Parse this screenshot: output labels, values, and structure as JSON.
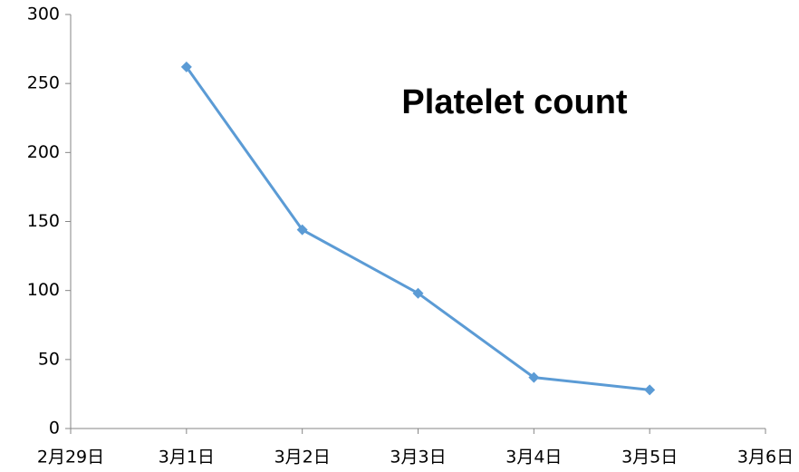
{
  "chart_data": {
    "type": "line",
    "title": "Platelet count",
    "categories": [
      "2月29日",
      "3月1日",
      "3月2日",
      "3月3日",
      "3月4日",
      "3月5日",
      "3月6日"
    ],
    "values": [
      null,
      262,
      144,
      98,
      37,
      28,
      null
    ],
    "color": "#5b9bd5",
    "marker": "diamond",
    "ylim": [
      0,
      300
    ],
    "yticks": [
      0,
      50,
      100,
      150,
      200,
      250,
      300
    ],
    "grid": false
  }
}
